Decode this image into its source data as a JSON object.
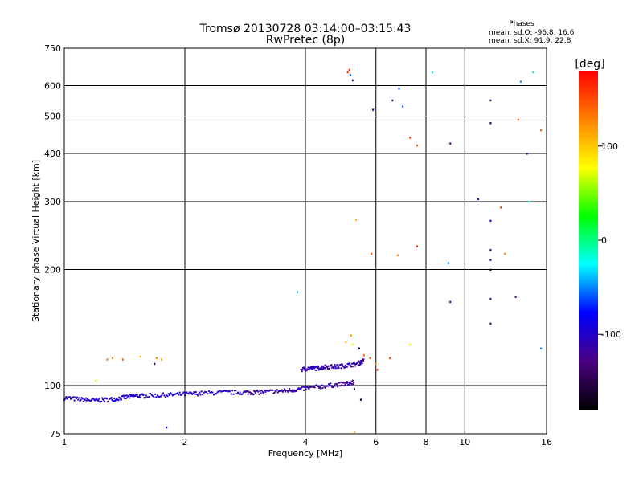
{
  "chart_data": {
    "type": "scatter",
    "title": "Tromsø 20130728 03:14:00–03:15:43",
    "subtitle": "RwPretec (8p)",
    "xlabel": "Frequency [MHz]",
    "ylabel": "Stationary phase Virtual Height [km]",
    "x_scale": "log",
    "y_scale": "log",
    "xlim": [
      1,
      16
    ],
    "ylim": [
      75,
      750
    ],
    "x_ticks": [
      1,
      2,
      4,
      6,
      8,
      10,
      16
    ],
    "y_ticks": [
      75,
      100,
      200,
      300,
      400,
      500,
      600,
      750
    ],
    "grid": true,
    "stats": {
      "heading": "Phases",
      "line1": "mean, sd,O: -96.8, 16.6",
      "line2": "mean, sd,X:  91.9, 22.8"
    },
    "colorbar": {
      "label": "[deg]",
      "range": [
        -180,
        180
      ],
      "ticks": [
        100,
        0,
        -100
      ],
      "colors": [
        "#000000",
        "#4b0082",
        "#0000ff",
        "#00ffff",
        "#00ff00",
        "#ffff00",
        "#ff8000",
        "#ff0000"
      ]
    },
    "o_trace": {
      "note": "dense ordinary-mode echo traces",
      "segments": [
        {
          "f": [
            1.0,
            1.1,
            1.2,
            1.3,
            1.4,
            1.5,
            1.6,
            1.8,
            2.0,
            2.2,
            2.5,
            2.8
          ],
          "h": [
            93,
            92,
            91.5,
            92,
            93,
            94,
            94,
            94.5,
            95,
            95.5,
            96,
            96
          ],
          "phase": -100
        },
        {
          "f": [
            2.8,
            3.0,
            3.3,
            3.6,
            3.9,
            4.2,
            4.6,
            5.0,
            5.3
          ],
          "h": [
            96,
            96,
            96.5,
            97,
            98,
            99,
            100,
            101,
            102
          ],
          "phase": -115
        },
        {
          "f": [
            3.9,
            4.1,
            4.3,
            4.5,
            4.8,
            5.1,
            5.4,
            5.6
          ],
          "h": [
            110,
            111,
            111,
            112,
            112,
            113,
            114,
            116
          ],
          "phase": -110
        }
      ]
    },
    "points": [
      {
        "f": 1.28,
        "h": 117,
        "p": 130
      },
      {
        "f": 1.32,
        "h": 118,
        "p": 130
      },
      {
        "f": 1.4,
        "h": 117,
        "p": 140
      },
      {
        "f": 1.55,
        "h": 119,
        "p": 120
      },
      {
        "f": 1.7,
        "h": 118,
        "p": 125
      },
      {
        "f": 1.75,
        "h": 117,
        "p": 110
      },
      {
        "f": 1.2,
        "h": 103,
        "p": 60
      },
      {
        "f": 1.68,
        "h": 114,
        "p": -150
      },
      {
        "f": 1.8,
        "h": 78,
        "p": -80
      },
      {
        "f": 3.82,
        "h": 175,
        "p": -40
      },
      {
        "f": 5.1,
        "h": 650,
        "p": 160
      },
      {
        "f": 5.15,
        "h": 660,
        "p": 170
      },
      {
        "f": 5.18,
        "h": 640,
        "p": -60
      },
      {
        "f": 5.25,
        "h": 620,
        "p": -130
      },
      {
        "f": 5.9,
        "h": 520,
        "p": -120
      },
      {
        "f": 6.6,
        "h": 550,
        "p": -140
      },
      {
        "f": 6.85,
        "h": 590,
        "p": -60
      },
      {
        "f": 7.0,
        "h": 530,
        "p": -60
      },
      {
        "f": 7.3,
        "h": 440,
        "p": 150
      },
      {
        "f": 7.6,
        "h": 420,
        "p": 150
      },
      {
        "f": 8.3,
        "h": 650,
        "p": -30
      },
      {
        "f": 9.2,
        "h": 425,
        "p": -130
      },
      {
        "f": 5.35,
        "h": 270,
        "p": 120
      },
      {
        "f": 5.85,
        "h": 220,
        "p": 150
      },
      {
        "f": 6.8,
        "h": 218,
        "p": 130
      },
      {
        "f": 7.6,
        "h": 230,
        "p": 170
      },
      {
        "f": 9.1,
        "h": 208,
        "p": -50
      },
      {
        "f": 9.2,
        "h": 165,
        "p": -130
      },
      {
        "f": 10.8,
        "h": 305,
        "p": -110
      },
      {
        "f": 11.6,
        "h": 550,
        "p": -130
      },
      {
        "f": 11.6,
        "h": 480,
        "p": -150
      },
      {
        "f": 11.6,
        "h": 268,
        "p": -80
      },
      {
        "f": 11.6,
        "h": 225,
        "p": -140
      },
      {
        "f": 11.6,
        "h": 212,
        "p": -110
      },
      {
        "f": 11.6,
        "h": 200,
        "p": -150
      },
      {
        "f": 11.6,
        "h": 168,
        "p": -110
      },
      {
        "f": 11.6,
        "h": 145,
        "p": -140
      },
      {
        "f": 12.3,
        "h": 290,
        "p": 150
      },
      {
        "f": 12.6,
        "h": 220,
        "p": 130
      },
      {
        "f": 13.6,
        "h": 490,
        "p": 150
      },
      {
        "f": 13.8,
        "h": 615,
        "p": -50
      },
      {
        "f": 13.4,
        "h": 170,
        "p": -130
      },
      {
        "f": 14.3,
        "h": 400,
        "p": -120
      },
      {
        "f": 14.5,
        "h": 300,
        "p": -20
      },
      {
        "f": 14.8,
        "h": 650,
        "p": -10
      },
      {
        "f": 15.5,
        "h": 460,
        "p": 140
      },
      {
        "f": 15.5,
        "h": 125,
        "p": -50
      },
      {
        "f": 5.2,
        "h": 135,
        "p": 120
      },
      {
        "f": 5.05,
        "h": 130,
        "p": 100
      },
      {
        "f": 5.25,
        "h": 128,
        "p": 80
      },
      {
        "f": 5.6,
        "h": 120,
        "p": 140
      },
      {
        "f": 5.8,
        "h": 118,
        "p": 150
      },
      {
        "f": 6.0,
        "h": 114,
        "p": 130
      },
      {
        "f": 6.05,
        "h": 110,
        "p": 160
      },
      {
        "f": 6.5,
        "h": 118,
        "p": 150
      },
      {
        "f": 7.3,
        "h": 128,
        "p": 80
      },
      {
        "f": 5.3,
        "h": 98,
        "p": -150
      },
      {
        "f": 5.5,
        "h": 92,
        "p": -150
      },
      {
        "f": 5.45,
        "h": 125,
        "p": -150
      },
      {
        "f": 5.3,
        "h": 76,
        "p": 120
      }
    ]
  }
}
